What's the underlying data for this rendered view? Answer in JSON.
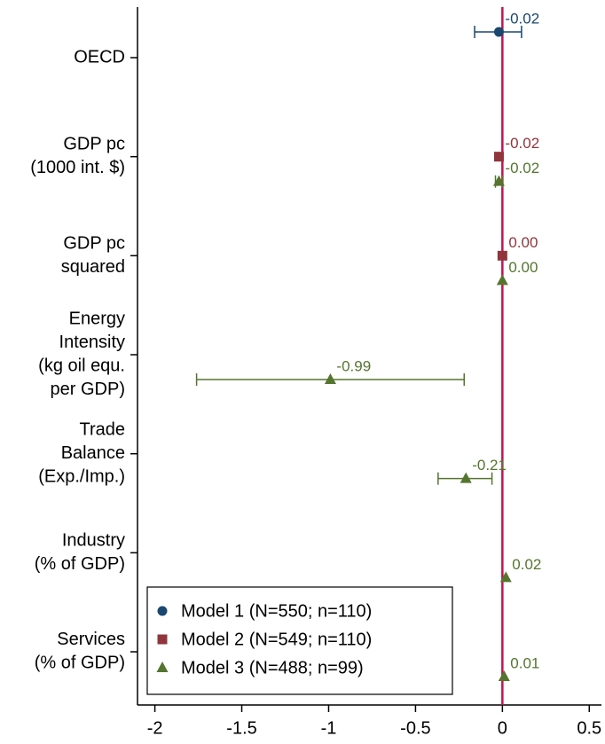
{
  "chart_data": {
    "type": "coefplot",
    "orientation": "horizontal",
    "categories": [
      [
        "OECD"
      ],
      [
        "GDP pc",
        "(1000 int. $)"
      ],
      [
        "GDP pc",
        "squared"
      ],
      [
        "Energy",
        "Intensity",
        "(kg oil equ.",
        "per GDP)"
      ],
      [
        "Trade",
        "Balance",
        "(Exp./Imp.)"
      ],
      [
        "Industry",
        "(% of GDP)"
      ],
      [
        "Services",
        "(% of GDP)"
      ]
    ],
    "series": [
      {
        "name": "Model 1 (N=550; n=110)",
        "color": "#1a476f",
        "marker": "circle",
        "values": [
          -0.02,
          null,
          null,
          null,
          null,
          null,
          null
        ],
        "value_labels": [
          "-0.02",
          null,
          null,
          null,
          null,
          null,
          null
        ],
        "ci": [
          [
            -0.16,
            0.11
          ],
          null,
          null,
          null,
          null,
          null,
          null
        ]
      },
      {
        "name": "Model 2 (N=549; n=110)",
        "color": "#90353b",
        "marker": "square",
        "values": [
          null,
          -0.02,
          0,
          null,
          null,
          null,
          null
        ],
        "value_labels": [
          null,
          "-0.02",
          "0.00",
          null,
          null,
          null,
          null
        ],
        "ci": [
          null,
          null,
          null,
          null,
          null,
          null,
          null
        ]
      },
      {
        "name": "Model 3 (N=488; n=99)",
        "color": "#55752f",
        "marker": "triangle",
        "values": [
          null,
          -0.02,
          0,
          -0.99,
          -0.21,
          0.02,
          0.01
        ],
        "value_labels": [
          null,
          "-0.02",
          "0.00",
          "-0.99",
          "-0.21",
          "0.02",
          "0.01"
        ],
        "ci": [
          null,
          [
            -0.04,
            0.0
          ],
          null,
          [
            -1.76,
            -0.22
          ],
          [
            -0.37,
            -0.06
          ],
          null,
          null
        ]
      }
    ],
    "xlim": [
      -2.1,
      0.57
    ],
    "xticks": [
      -2,
      -1.5,
      -1,
      -0.5,
      0,
      0.5
    ],
    "xline": 0,
    "xline_color": "#c0134b",
    "legend": "bottom-left",
    "grid": false
  }
}
